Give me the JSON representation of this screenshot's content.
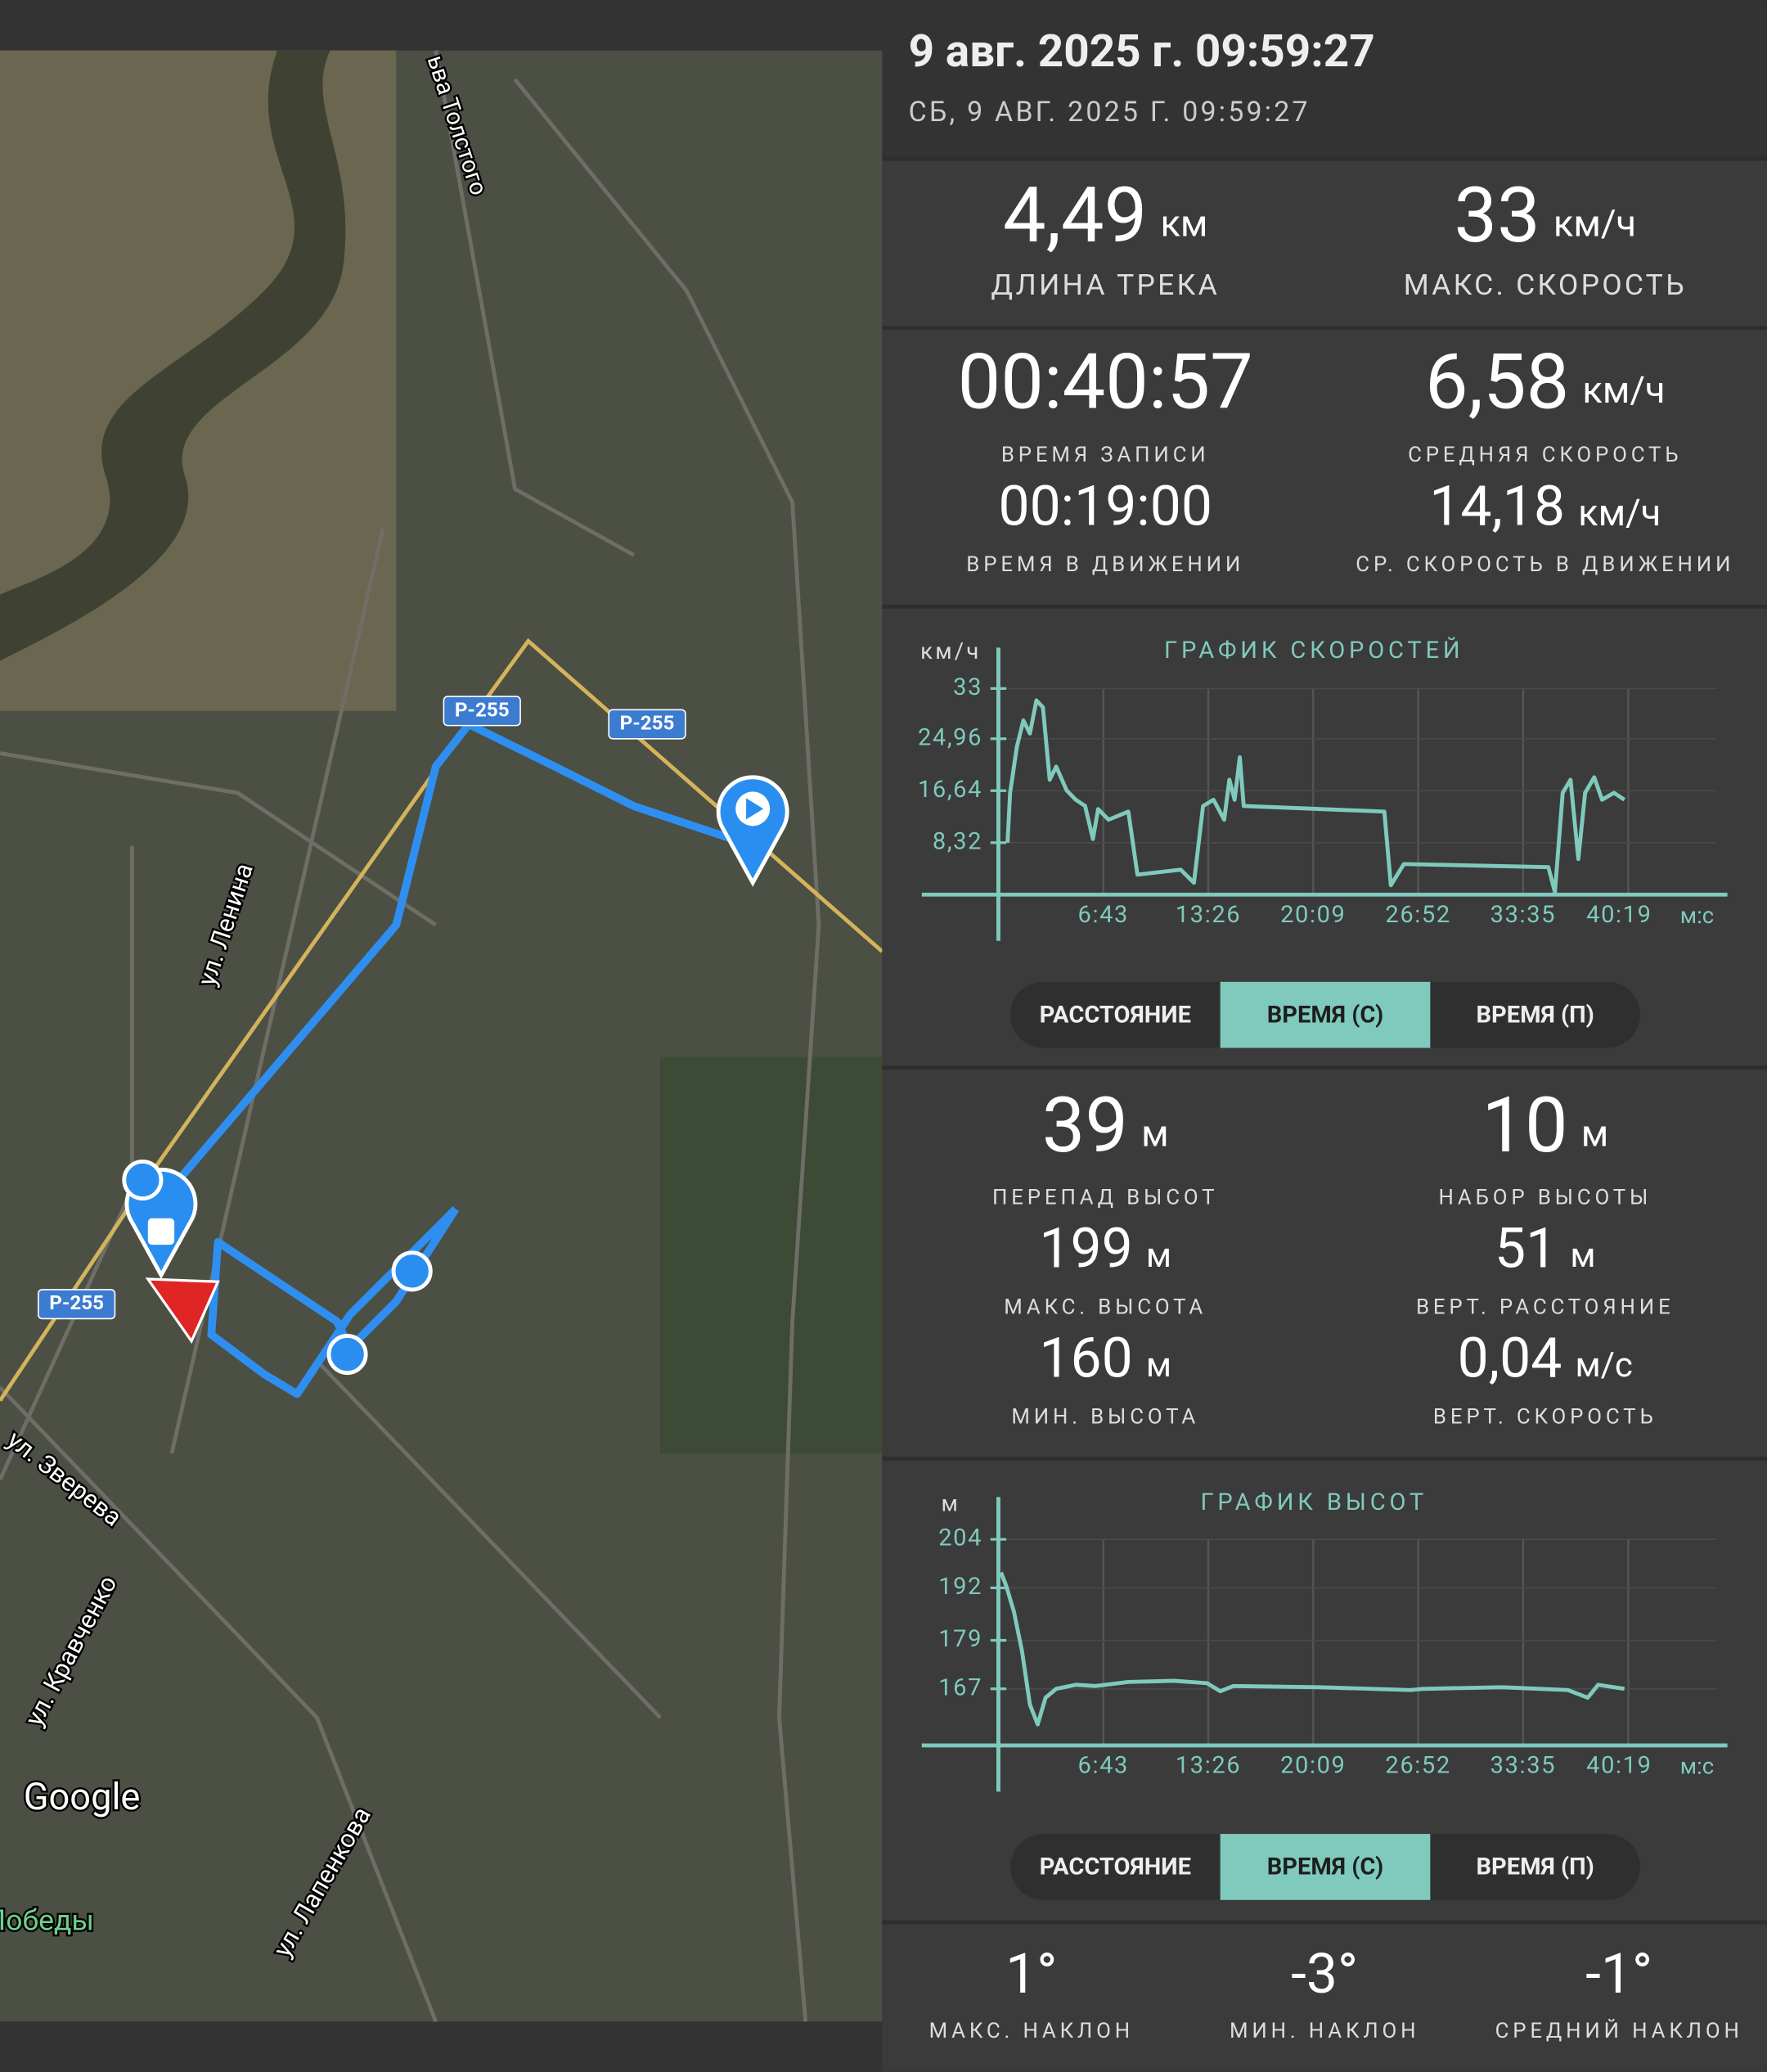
{
  "header": {
    "title": "9 авг. 2025 г. 09:59:27",
    "subtitle": "СБ, 9 АВГ. 2025 Г. 09:59:27"
  },
  "map": {
    "labels": [
      "ьва Толстого",
      "Р-255",
      "Р-255",
      "ул. Ленина",
      "Р-255",
      "ул. Зверева",
      "ул. Кравченко",
      "ул. Лапенкова",
      "Победы",
      "Google"
    ]
  },
  "track_stats": [
    {
      "value": "4,49",
      "unit": "км",
      "label": "ДЛИНА ТРЕКА"
    },
    {
      "value": "33",
      "unit": "км/ч",
      "label": "МАКС. СКОРОСТЬ"
    },
    {
      "value": "00:40:57",
      "label": "ВРЕМЯ ЗАПИСИ"
    },
    {
      "value": "6,58",
      "unit": "км/ч",
      "label": "СРЕДНЯЯ СКОРОСТЬ"
    },
    {
      "value": "00:19:00",
      "label": "ВРЕМЯ В ДВИЖЕНИИ"
    },
    {
      "value": "14,18",
      "unit": "км/ч",
      "label": "СР. СКОРОСТЬ В ДВИЖЕНИИ"
    }
  ],
  "elevation_stats": [
    {
      "value": "39",
      "unit": "м",
      "label": "ПЕРЕПАД ВЫСОТ"
    },
    {
      "value": "10",
      "unit": "м",
      "label": "НАБОР ВЫСОТЫ"
    },
    {
      "value": "199",
      "unit": "м",
      "label": "МАКС. ВЫСОТА"
    },
    {
      "value": "51",
      "unit": "м",
      "label": "ВЕРТ. РАССТОЯНИЕ"
    },
    {
      "value": "160",
      "unit": "м",
      "label": "МИН. ВЫСОТА"
    },
    {
      "value": "0,04",
      "unit": "м/с",
      "label": "ВЕРТ. СКОРОСТЬ"
    }
  ],
  "slope_stats": [
    {
      "value": "1°",
      "label": "МАКС. НАКЛОН"
    },
    {
      "value": "-3°",
      "label": "МИН. НАКЛОН"
    },
    {
      "value": "-1°",
      "label": "СРЕДНИЙ НАКЛОН"
    }
  ],
  "chart_data": [
    {
      "type": "line",
      "title": "ГРАФИК СКОРОСТЕЙ",
      "y_unit": "км/ч",
      "x_unit": "м:с",
      "xlim": [
        0,
        2419
      ],
      "ylim": [
        0,
        33
      ],
      "xticks": [
        {
          "value": 403,
          "label": "6:43"
        },
        {
          "value": 806,
          "label": "13:26"
        },
        {
          "value": 1209,
          "label": "20:09"
        },
        {
          "value": 1612,
          "label": "26:52"
        },
        {
          "value": 2015,
          "label": "33:35"
        },
        {
          "value": 2419,
          "label": "40:19"
        }
      ],
      "yticks": [
        {
          "value": 8.32,
          "label": "8,32"
        },
        {
          "value": 16.64,
          "label": "16,64"
        },
        {
          "value": 24.96,
          "label": "24,96"
        },
        33
      ],
      "grid": true,
      "series": [
        {
          "color": "#7fcabd",
          "x": [
            35,
            45,
            71,
            96,
            121,
            146,
            171,
            197,
            222,
            262,
            297,
            333,
            363,
            383,
            423,
            464,
            499,
            534,
            700,
            751,
            786,
            826,
            867,
            887,
            907,
            927,
            942,
            1482,
            1507,
            1557,
            2112,
            2137,
            2167,
            2197,
            2227,
            2253,
            2288,
            2318,
            2364,
            2404
          ],
          "values": [
            8.3,
            16.3,
            23.7,
            27.9,
            25.8,
            31.1,
            30,
            18.4,
            20.5,
            16.7,
            15.2,
            14.2,
            8.9,
            13.7,
            12,
            12.7,
            13.3,
            3.2,
            4,
            1.9,
            14.2,
            15.2,
            12,
            18.4,
            15.2,
            22,
            14.2,
            13.3,
            1.5,
            4.9,
            4.4,
            0.4,
            16.3,
            18.4,
            5.7,
            16.3,
            18.8,
            15.2,
            16.3,
            15.2
          ]
        }
      ]
    },
    {
      "type": "line",
      "title": "ГРАФИК ВЫСОТ",
      "y_unit": "м",
      "x_unit": "м:с",
      "xlim": [
        0,
        2419
      ],
      "ylim": [
        153,
        204
      ],
      "xticks": [
        {
          "value": 403,
          "label": "6:43"
        },
        {
          "value": 806,
          "label": "13:26"
        },
        {
          "value": 1209,
          "label": "20:09"
        },
        {
          "value": 1612,
          "label": "26:52"
        },
        {
          "value": 2015,
          "label": "33:35"
        },
        {
          "value": 2419,
          "label": "40:19"
        }
      ],
      "yticks": [
        167,
        179,
        192,
        204
      ],
      "grid": true,
      "series": [
        {
          "color": "#7fcabd",
          "x": [
            10,
            30,
            60,
            91,
            121,
            151,
            181,
            222,
            297,
            373,
            499,
            675,
            801,
            852,
            902,
            1230,
            1582,
            1633,
            1935,
            2187,
            2263,
            2303,
            2404
          ],
          "values": [
            195.8,
            192.5,
            186,
            176.2,
            163.1,
            158.2,
            164.8,
            167,
            168,
            167.7,
            168.7,
            169,
            168.4,
            166.4,
            167.7,
            167.4,
            166.7,
            167,
            167.4,
            166.7,
            164.8,
            168,
            167
          ]
        }
      ]
    }
  ],
  "chart_controls": [
    {
      "options": [
        "РАССТОЯНИЕ",
        "ВРЕМЯ (С)",
        "ВРЕМЯ (П)"
      ],
      "selected": 1
    },
    {
      "options": [
        "РАССТОЯНИЕ",
        "ВРЕМЯ (С)",
        "ВРЕМЯ (П)"
      ],
      "selected": 1
    }
  ]
}
